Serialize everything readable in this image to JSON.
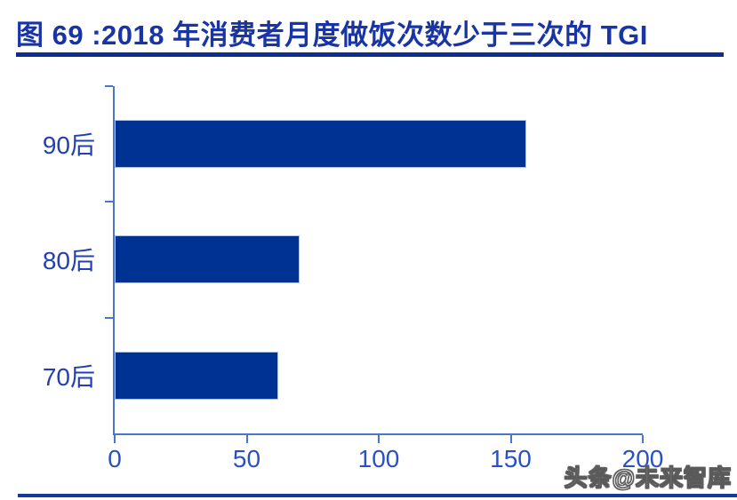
{
  "figure": {
    "title": "图 69 :2018 年消费者月度做饭次数少于三次的 TGI",
    "watermark": "头条@未来智库"
  },
  "colors": {
    "title": "#1834a6",
    "rule": "#0c2e93",
    "bar": "#003294",
    "bar_edge": "#aebfe4",
    "axis": "#4976c9",
    "tick_label": "#2b50c4",
    "category_label": "#2240b4",
    "bottom_rule": "#143a9e"
  },
  "chart_data": {
    "type": "bar",
    "orientation": "horizontal",
    "title": "图 69 :2018 年消费者月度做饭次数少于三次的 TGI",
    "categories": [
      "90后",
      "80后",
      "70后"
    ],
    "values": [
      156,
      70,
      62
    ],
    "xlabel": "",
    "ylabel": "",
    "xlim": [
      0,
      200
    ],
    "x_ticks": [
      0,
      50,
      100,
      150,
      200
    ],
    "grid": false,
    "legend": false
  }
}
